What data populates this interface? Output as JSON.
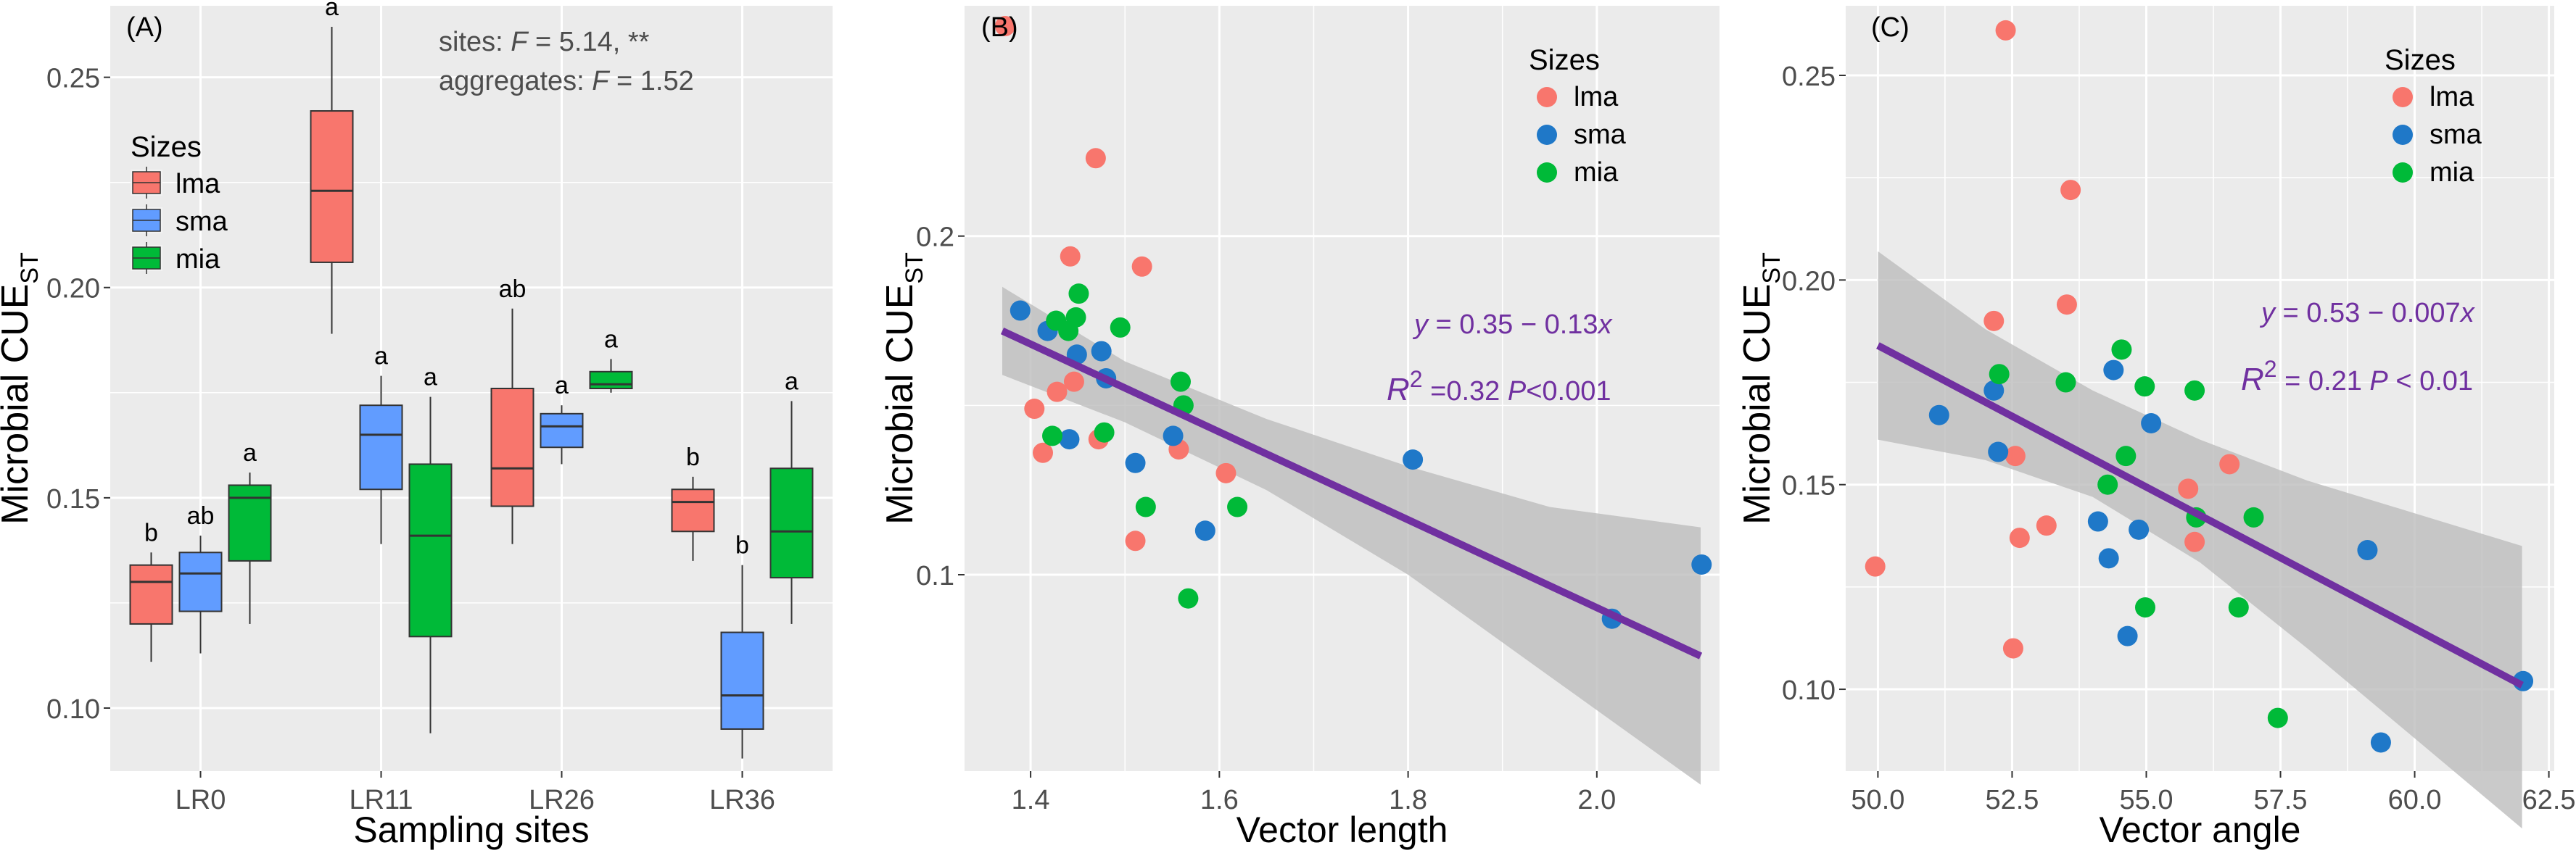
{
  "colors": {
    "panel_bg": "#ebebeb",
    "grid_major": "#ffffff",
    "lma": "#f8766d",
    "sma": "#619cff",
    "sma_point": "#1f78c8",
    "mia": "#00ba38",
    "fit_line": "#7030a0",
    "ribbon": "#bdbdbd",
    "annotation": "#7030a0",
    "text": "#000000",
    "tick_text": "#4d4d4d",
    "stats_text": "#4d4d4d"
  },
  "legend": {
    "title": "Sizes",
    "items": [
      {
        "key": "lma",
        "label": "lma"
      },
      {
        "key": "sma",
        "label": "sma"
      },
      {
        "key": "mia",
        "label": "mia"
      }
    ]
  },
  "chart_data": [
    {
      "id": "A",
      "type": "box",
      "panel_label": "(A)",
      "xlabel": "Sampling sites",
      "ylabel_main": "Microbial CUE",
      "ylabel_sub": "ST",
      "ylim": [
        0.085,
        0.267
      ],
      "yticks": [
        0.1,
        0.15,
        0.2,
        0.25
      ],
      "ytick_labels": [
        "0.10",
        "0.15",
        "0.20",
        "0.25"
      ],
      "categories": [
        "LR0",
        "LR11",
        "LR26",
        "LR36"
      ],
      "stats_lines": [
        {
          "prefix": "sites: ",
          "italic": "F",
          "suffix": " = 5.14, **"
        },
        {
          "prefix": "aggregates: ",
          "italic": "F",
          "suffix": " = 1.52"
        }
      ],
      "series": [
        {
          "name": "lma",
          "boxes": [
            {
              "min": 0.111,
              "q1": 0.12,
              "median": 0.13,
              "q3": 0.134,
              "max": 0.137,
              "letter": "b"
            },
            {
              "min": 0.189,
              "q1": 0.206,
              "median": 0.223,
              "q3": 0.242,
              "max": 0.262,
              "letter": "a"
            },
            {
              "min": 0.139,
              "q1": 0.148,
              "median": 0.157,
              "q3": 0.176,
              "max": 0.195,
              "letter": "ab"
            },
            {
              "min": 0.135,
              "q1": 0.142,
              "median": 0.149,
              "q3": 0.152,
              "max": 0.155,
              "letter": "b"
            }
          ]
        },
        {
          "name": "sma",
          "boxes": [
            {
              "min": 0.113,
              "q1": 0.123,
              "median": 0.132,
              "q3": 0.137,
              "max": 0.141,
              "letter": "ab"
            },
            {
              "min": 0.139,
              "q1": 0.152,
              "median": 0.165,
              "q3": 0.172,
              "max": 0.179,
              "letter": "a"
            },
            {
              "min": 0.158,
              "q1": 0.162,
              "median": 0.167,
              "q3": 0.17,
              "max": 0.172,
              "letter": "a"
            },
            {
              "min": 0.088,
              "q1": 0.095,
              "median": 0.103,
              "q3": 0.118,
              "max": 0.134,
              "letter": "b"
            }
          ]
        },
        {
          "name": "mia",
          "boxes": [
            {
              "min": 0.12,
              "q1": 0.135,
              "median": 0.15,
              "q3": 0.153,
              "max": 0.156,
              "letter": "a"
            },
            {
              "min": 0.094,
              "q1": 0.117,
              "median": 0.141,
              "q3": 0.158,
              "max": 0.174,
              "letter": "a"
            },
            {
              "min": 0.175,
              "q1": 0.176,
              "median": 0.177,
              "q3": 0.18,
              "max": 0.183,
              "letter": "a"
            },
            {
              "min": 0.12,
              "q1": 0.131,
              "median": 0.142,
              "q3": 0.157,
              "max": 0.173,
              "letter": "a"
            }
          ]
        }
      ]
    },
    {
      "id": "B",
      "type": "scatter",
      "panel_label": "(B)",
      "xlabel": "Vector length",
      "ylabel_main": "Microbial CUE",
      "ylabel_sub": "ST",
      "xlim": [
        1.33,
        2.13
      ],
      "ylim": [
        0.042,
        0.268
      ],
      "xticks": [
        1.4,
        1.6,
        1.8,
        2.0
      ],
      "xtick_labels": [
        "1.4",
        "1.6",
        "1.8",
        "2.0"
      ],
      "yticks": [
        0.1,
        0.2
      ],
      "ytick_labels": [
        "0.1",
        "0.2"
      ],
      "fit": {
        "x": [
          1.37,
          2.11
        ],
        "y": [
          0.172,
          0.076
        ]
      },
      "ribbon": {
        "x": [
          1.37,
          1.5,
          1.65,
          1.8,
          1.95,
          2.11
        ],
        "upper": [
          0.185,
          0.163,
          0.146,
          0.132,
          0.12,
          0.114
        ],
        "lower": [
          0.159,
          0.145,
          0.125,
          0.1,
          0.07,
          0.038
        ]
      },
      "eq": {
        "y": "y",
        "eq_mid": " = 0.35 ",
        "minus": "−",
        "eq_rest": " 0.13",
        "x": "x"
      },
      "r2": {
        "r": "R",
        "sup": "2",
        "value": " =0.32 ",
        "p": "P",
        "p_value": "<0.001"
      },
      "points": [
        {
          "s": "lma",
          "x": 1.373,
          "y": 0.262
        },
        {
          "s": "lma",
          "x": 1.469,
          "y": 0.223
        },
        {
          "s": "lma",
          "x": 1.442,
          "y": 0.194
        },
        {
          "s": "lma",
          "x": 1.518,
          "y": 0.191
        },
        {
          "s": "lma",
          "x": 1.446,
          "y": 0.157
        },
        {
          "s": "lma",
          "x": 1.428,
          "y": 0.154
        },
        {
          "s": "lma",
          "x": 1.404,
          "y": 0.149
        },
        {
          "s": "lma",
          "x": 1.413,
          "y": 0.136
        },
        {
          "s": "lma",
          "x": 1.472,
          "y": 0.14
        },
        {
          "s": "lma",
          "x": 1.557,
          "y": 0.137
        },
        {
          "s": "lma",
          "x": 1.607,
          "y": 0.13
        },
        {
          "s": "lma",
          "x": 1.511,
          "y": 0.11
        },
        {
          "s": "sma",
          "x": 1.389,
          "y": 0.178
        },
        {
          "s": "sma",
          "x": 1.418,
          "y": 0.172
        },
        {
          "s": "sma",
          "x": 1.449,
          "y": 0.165
        },
        {
          "s": "sma",
          "x": 1.475,
          "y": 0.166
        },
        {
          "s": "sma",
          "x": 1.48,
          "y": 0.158
        },
        {
          "s": "sma",
          "x": 1.441,
          "y": 0.14
        },
        {
          "s": "sma",
          "x": 1.551,
          "y": 0.141
        },
        {
          "s": "sma",
          "x": 1.511,
          "y": 0.133
        },
        {
          "s": "sma",
          "x": 1.585,
          "y": 0.113
        },
        {
          "s": "sma",
          "x": 1.805,
          "y": 0.134
        },
        {
          "s": "sma",
          "x": 2.016,
          "y": 0.087
        },
        {
          "s": "sma",
          "x": 2.111,
          "y": 0.103
        },
        {
          "s": "mia",
          "x": 1.451,
          "y": 0.183
        },
        {
          "s": "mia",
          "x": 1.427,
          "y": 0.175
        },
        {
          "s": "mia",
          "x": 1.448,
          "y": 0.176
        },
        {
          "s": "mia",
          "x": 1.44,
          "y": 0.172
        },
        {
          "s": "mia",
          "x": 1.495,
          "y": 0.173
        },
        {
          "s": "mia",
          "x": 1.559,
          "y": 0.157
        },
        {
          "s": "mia",
          "x": 1.562,
          "y": 0.15
        },
        {
          "s": "mia",
          "x": 1.423,
          "y": 0.141
        },
        {
          "s": "mia",
          "x": 1.478,
          "y": 0.142
        },
        {
          "s": "mia",
          "x": 1.522,
          "y": 0.12
        },
        {
          "s": "mia",
          "x": 1.619,
          "y": 0.12
        },
        {
          "s": "mia",
          "x": 1.567,
          "y": 0.093
        }
      ]
    },
    {
      "id": "C",
      "type": "scatter",
      "panel_label": "(C)",
      "xlabel": "Vector angle",
      "ylabel_main": "Microbial CUE",
      "ylabel_sub": "ST",
      "xlim": [
        49.4,
        62.6
      ],
      "ylim": [
        0.08,
        0.267
      ],
      "xticks": [
        50.0,
        52.5,
        55.0,
        57.5,
        60.0,
        62.5
      ],
      "xtick_labels": [
        "50.0",
        "52.5",
        "55.0",
        "57.5",
        "60.0",
        "62.5"
      ],
      "yticks": [
        0.1,
        0.15,
        0.2,
        0.25
      ],
      "ytick_labels": [
        "0.10",
        "0.15",
        "0.20",
        "0.25"
      ],
      "fit": {
        "x": [
          50.0,
          62.0
        ],
        "y": [
          0.184,
          0.101
        ]
      },
      "ribbon": {
        "x": [
          50.0,
          52.0,
          54.0,
          56.0,
          58.0,
          60.0,
          62.0
        ],
        "upper": [
          0.207,
          0.188,
          0.173,
          0.161,
          0.151,
          0.143,
          0.135
        ],
        "lower": [
          0.161,
          0.156,
          0.147,
          0.131,
          0.11,
          0.088,
          0.066
        ]
      },
      "eq": {
        "y": "y",
        "eq_mid": " = 0.53 ",
        "minus": "−",
        "eq_rest": " 0.007",
        "x": "x"
      },
      "r2": {
        "r": "R",
        "sup": "2",
        "value": " = 0.21  ",
        "p": "P",
        "p_value": " < 0.01"
      },
      "points": [
        {
          "s": "lma",
          "x": 52.38,
          "y": 0.261
        },
        {
          "s": "lma",
          "x": 53.59,
          "y": 0.222
        },
        {
          "s": "lma",
          "x": 53.52,
          "y": 0.194
        },
        {
          "s": "lma",
          "x": 52.16,
          "y": 0.19
        },
        {
          "s": "lma",
          "x": 52.56,
          "y": 0.157
        },
        {
          "s": "lma",
          "x": 55.78,
          "y": 0.149
        },
        {
          "s": "lma",
          "x": 56.55,
          "y": 0.155
        },
        {
          "s": "lma",
          "x": 53.14,
          "y": 0.14
        },
        {
          "s": "lma",
          "x": 52.64,
          "y": 0.137
        },
        {
          "s": "lma",
          "x": 55.9,
          "y": 0.136
        },
        {
          "s": "lma",
          "x": 49.95,
          "y": 0.13
        },
        {
          "s": "lma",
          "x": 52.52,
          "y": 0.11
        },
        {
          "s": "sma",
          "x": 54.39,
          "y": 0.178
        },
        {
          "s": "sma",
          "x": 52.16,
          "y": 0.173
        },
        {
          "s": "sma",
          "x": 51.14,
          "y": 0.167
        },
        {
          "s": "sma",
          "x": 55.09,
          "y": 0.165
        },
        {
          "s": "sma",
          "x": 52.24,
          "y": 0.158
        },
        {
          "s": "sma",
          "x": 54.1,
          "y": 0.141
        },
        {
          "s": "sma",
          "x": 54.86,
          "y": 0.139
        },
        {
          "s": "sma",
          "x": 54.3,
          "y": 0.132
        },
        {
          "s": "sma",
          "x": 59.12,
          "y": 0.134
        },
        {
          "s": "sma",
          "x": 54.65,
          "y": 0.113
        },
        {
          "s": "sma",
          "x": 59.37,
          "y": 0.087
        },
        {
          "s": "sma",
          "x": 62.02,
          "y": 0.102
        },
        {
          "s": "mia",
          "x": 54.54,
          "y": 0.183
        },
        {
          "s": "mia",
          "x": 52.26,
          "y": 0.177
        },
        {
          "s": "mia",
          "x": 53.5,
          "y": 0.175
        },
        {
          "s": "mia",
          "x": 54.97,
          "y": 0.174
        },
        {
          "s": "mia",
          "x": 55.9,
          "y": 0.173
        },
        {
          "s": "mia",
          "x": 54.62,
          "y": 0.157
        },
        {
          "s": "mia",
          "x": 54.28,
          "y": 0.15
        },
        {
          "s": "mia",
          "x": 55.93,
          "y": 0.142
        },
        {
          "s": "mia",
          "x": 57.0,
          "y": 0.142
        },
        {
          "s": "mia",
          "x": 54.98,
          "y": 0.12
        },
        {
          "s": "mia",
          "x": 56.72,
          "y": 0.12
        },
        {
          "s": "mia",
          "x": 57.45,
          "y": 0.093
        }
      ]
    }
  ]
}
